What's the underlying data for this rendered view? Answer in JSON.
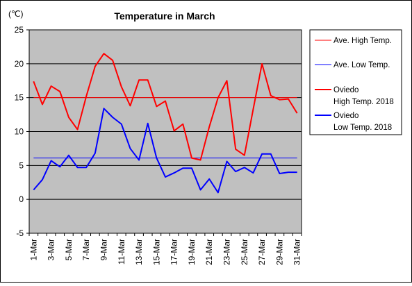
{
  "chart_data": {
    "type": "line",
    "title": "Temperature in March",
    "unit_label": "(℃)",
    "xlabel": "",
    "ylabel": "",
    "ylim": [
      -5,
      25
    ],
    "yticks": [
      "25",
      "20",
      "15",
      "10",
      "5",
      "0",
      "-5"
    ],
    "x_tick_labels": [
      "1-Mar",
      "3-Mar",
      "5-Mar",
      "7-Mar",
      "9-Mar",
      "11-Mar",
      "13-Mar",
      "15-Mar",
      "17-Mar",
      "19-Mar",
      "21-Mar",
      "23-Mar",
      "25-Mar",
      "27-Mar",
      "29-Mar",
      "31-Mar"
    ],
    "grid": true,
    "legend_position": "right",
    "plot_background": "#c0c0c0",
    "series": [
      {
        "name": "Ave. High Temp.",
        "color": "#ff0000",
        "line": "thin",
        "values": [
          15,
          15,
          15,
          15,
          15,
          15,
          15,
          15,
          15,
          15,
          15,
          15,
          15,
          15,
          15,
          15,
          15,
          15,
          15,
          15,
          15,
          15,
          15,
          15,
          15,
          15,
          15,
          15,
          15,
          15,
          15
        ]
      },
      {
        "name": "Ave. Low Temp.",
        "color": "#0000ff",
        "line": "thin",
        "values": [
          6.1,
          6.1,
          6.1,
          6.1,
          6.1,
          6.1,
          6.1,
          6.1,
          6.1,
          6.1,
          6.1,
          6.1,
          6.1,
          6.1,
          6.1,
          6.1,
          6.1,
          6.1,
          6.1,
          6.1,
          6.1,
          6.1,
          6.1,
          6.1,
          6.1,
          6.1,
          6.1,
          6.1,
          6.1,
          6.1,
          6.1
        ]
      },
      {
        "name_line1": "Oviedo",
        "name_line2": "High Temp. 2018",
        "color": "#ff0000",
        "line": "thick",
        "values": [
          17.4,
          14,
          16.7,
          15.9,
          12.1,
          10.3,
          15.2,
          19.6,
          21.5,
          20.5,
          16.6,
          13.8,
          17.6,
          17.6,
          13.7,
          14.5,
          10.1,
          11.1,
          6.1,
          5.8,
          10.7,
          15,
          17.5,
          7.4,
          6.5,
          13.3,
          20,
          15.3,
          14.7,
          14.8,
          12.7
        ]
      },
      {
        "name_line1": "Oviedo",
        "name_line2": "Low Temp. 2018",
        "color": "#0000ff",
        "line": "thick",
        "values": [
          1.4,
          2.9,
          5.7,
          4.8,
          6.5,
          4.7,
          4.7,
          6.8,
          13.4,
          12.1,
          11.1,
          7.5,
          5.8,
          11.2,
          6.1,
          3.3,
          3.9,
          4.6,
          4.6,
          1.4,
          3,
          1,
          5.6,
          4.1,
          4.7,
          3.9,
          6.7,
          6.7,
          3.8,
          4,
          4
        ]
      }
    ]
  }
}
